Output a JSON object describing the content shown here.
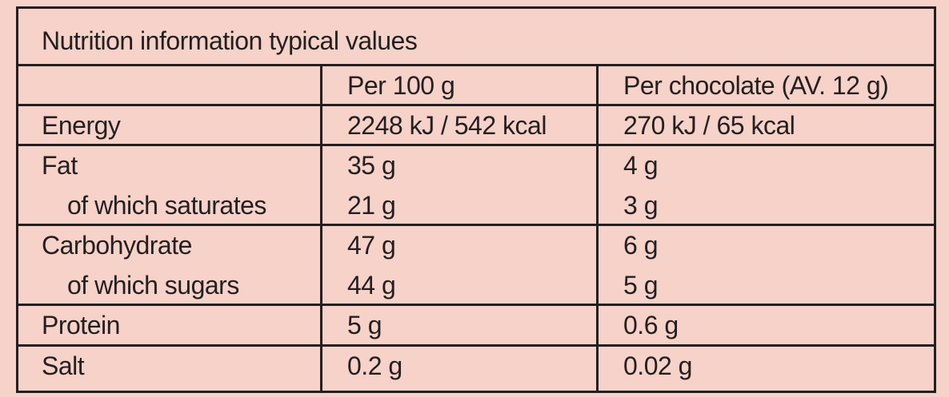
{
  "title": "Nutrition information typical values",
  "columns": {
    "per_100g": "Per 100 g",
    "per_chocolate": "Per chocolate (AV. 12 g)"
  },
  "rows": [
    {
      "label": "Energy",
      "per_100g": "2248 kJ / 542 kcal",
      "per_chocolate": "270 kJ / 65 kcal"
    },
    {
      "label": "Fat",
      "per_100g": "35 g",
      "per_chocolate": "4 g"
    },
    {
      "label": "of which saturates",
      "per_100g": "21 g",
      "per_chocolate": "3 g"
    },
    {
      "label": "Carbohydrate",
      "per_100g": "47 g",
      "per_chocolate": "6 g"
    },
    {
      "label": "of which sugars",
      "per_100g": "44 g",
      "per_chocolate": "5 g"
    },
    {
      "label": "Protein",
      "per_100g": "5 g",
      "per_chocolate": "0.6 g"
    },
    {
      "label": "Salt",
      "per_100g": "0.2 g",
      "per_chocolate": "0.02 g"
    }
  ]
}
